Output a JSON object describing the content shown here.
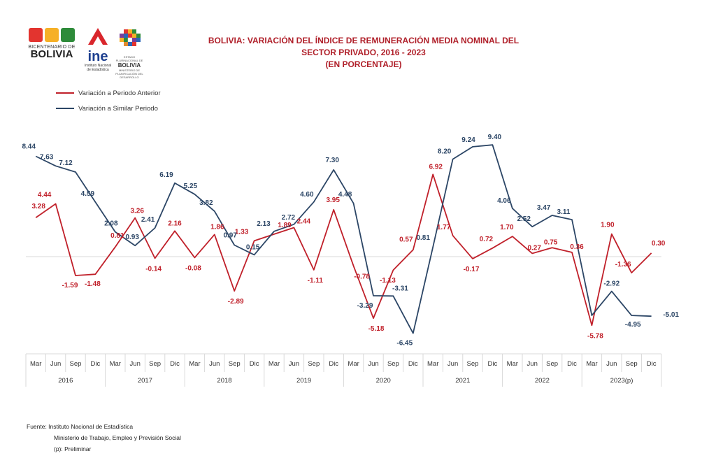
{
  "logos": {
    "bicentenario": {
      "line1": "BICENTENARIO DE",
      "line2": "BOLIVIA",
      "colors": [
        "#e3342f",
        "#f6b026",
        "#2e8b3a"
      ]
    },
    "ine": {
      "name": "ine",
      "subtitle_1": "Instituto Nacional",
      "subtitle_2": "de Estadística",
      "colors": [
        "#d9262c",
        "#1d3f8f"
      ]
    },
    "estado": {
      "line1": "ESTADO PLURINACIONAL DE",
      "line2": "BOLIVIA",
      "line3": "MINISTERIO DE PLANIFICACIÓN DEL DESARROLLO"
    }
  },
  "title": {
    "line1": "BOLIVIA: VARIACIÓN DEL ÍNDICE DE REMUNERACIÓN MEDIA NOMINAL DEL",
    "line2": "SECTOR PRIVADO, 2016 - 2023",
    "line3": "(EN PORCENTAJE)"
  },
  "chart_data": {
    "type": "line",
    "quarters": [
      "Mar",
      "Jun",
      "Sep",
      "Dic"
    ],
    "years": [
      "2016",
      "2017",
      "2018",
      "2019",
      "2020",
      "2021",
      "2022",
      "2023(p)"
    ],
    "series": [
      {
        "name": "Variación a Periodo Anterior",
        "color": "#c0202a",
        "values": [
          3.28,
          4.44,
          -1.59,
          -1.48,
          0.81,
          3.26,
          -0.14,
          2.16,
          -0.08,
          1.86,
          -2.89,
          1.33,
          1.89,
          2.44,
          -1.11,
          3.95,
          -0.78,
          -5.18,
          -1.13,
          0.57,
          6.92,
          1.77,
          -0.17,
          0.72,
          1.7,
          0.27,
          0.75,
          0.36,
          -5.78,
          1.9,
          -1.36,
          0.3
        ],
        "labels": [
          "3.28",
          "4.44",
          "-1.59",
          "-1.48",
          "0.81",
          "3.26",
          "-0.14",
          "2.16",
          "-0.08",
          "1.86",
          "-2.89",
          "1.33",
          "1.89",
          "2.44",
          "-1.11",
          "3.95",
          "-0.78",
          "-5.18",
          "-1.13",
          "0.57",
          "6.92",
          "1.77",
          "-0.17",
          "0.72",
          "1.70",
          "0.27",
          "0.75",
          "0.36",
          "-5.78",
          "1.90",
          "-1.36",
          "0.30"
        ]
      },
      {
        "name": "Variación a Similar Periodo",
        "color": "#2c4666",
        "values": [
          8.44,
          7.63,
          7.12,
          4.59,
          2.08,
          0.93,
          2.41,
          6.19,
          5.25,
          3.82,
          0.97,
          0.15,
          2.13,
          2.72,
          4.6,
          7.3,
          4.48,
          -3.29,
          -3.31,
          -6.45,
          0.81,
          8.2,
          9.24,
          9.4,
          4.06,
          2.52,
          3.47,
          3.11,
          -4.95,
          -2.92,
          -4.95,
          -5.01
        ],
        "labels": [
          "8.44",
          "7.63",
          "7.12",
          "4.59",
          "2.08",
          "0.93",
          "2.41",
          "6.19",
          "5.25",
          "3.82",
          "0.97",
          "0.15",
          "2.13",
          "2.72",
          "4.60",
          "7.30",
          "4.48",
          "-3.29",
          "-3.31",
          "-6.45",
          "0.81",
          "8.20",
          "9.24",
          "9.40",
          "4.06",
          "2.52",
          "3.47",
          "3.11",
          "",
          "-2.92",
          "-4.95",
          "-5.01"
        ]
      }
    ],
    "ylim": [
      -7,
      10
    ],
    "legend_position": "top-left",
    "grid": false
  },
  "source": {
    "line1": "Fuente: Instituto Nacional de Estadística",
    "line2": "Ministerio de Trabajo, Empleo y Previsión Social",
    "line3": "(p): Preliminar"
  }
}
